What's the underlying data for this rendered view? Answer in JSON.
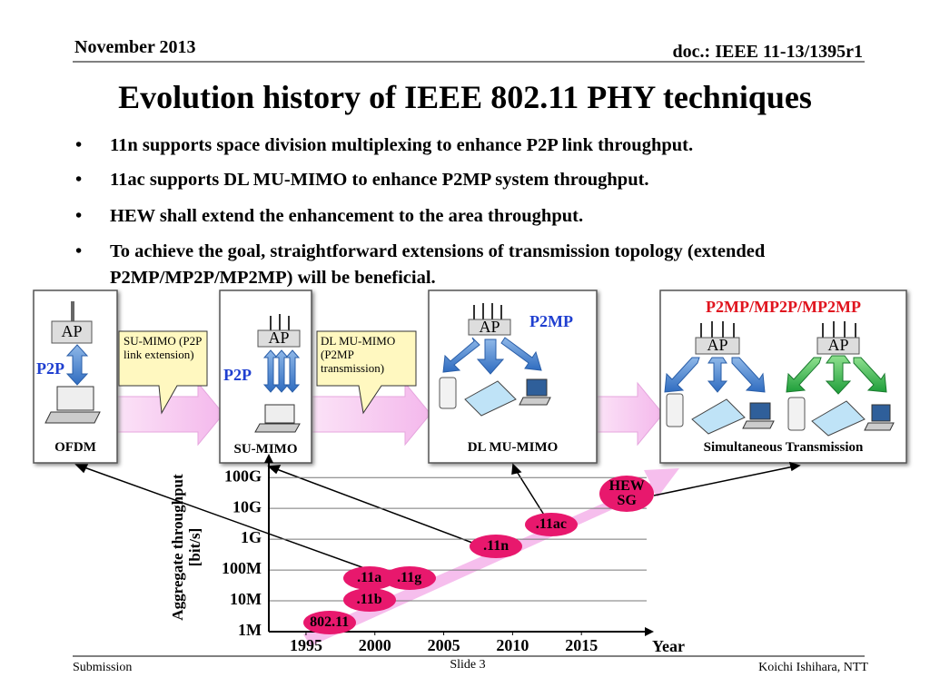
{
  "header": {
    "date": "November 2013",
    "doc": "doc.: IEEE 11-13/1395r1"
  },
  "title": "Evolution history of IEEE 802.11 PHY techniques",
  "bullets": [
    "11n supports space division multiplexing to enhance P2P link throughput.",
    "11ac supports DL MU-MIMO to enhance P2MP system throughput.",
    "HEW shall extend the enhancement to the area throughput.",
    "To achieve the goal, straightforward extensions of transmission topology (extended P2MP/MP2P/MP2MP) will be beneficial."
  ],
  "diagram": {
    "panels": [
      {
        "ap": "AP",
        "link": "P2P",
        "caption": "OFDM"
      },
      {
        "ap": "AP",
        "link": "P2P",
        "caption": "SU-MIMO"
      },
      {
        "ap": "AP",
        "link": "P2MP",
        "caption": "DL MU-MIMO"
      },
      {
        "heading": "P2MP/MP2P/MP2MP",
        "aps": [
          "AP",
          "AP"
        ],
        "caption": "Simultaneous Transmission"
      }
    ],
    "callouts": [
      "SU-MIMO (P2P link extension)",
      "DL MU-MIMO (P2MP transmission)"
    ]
  },
  "chart_data": {
    "type": "scatter",
    "y_label": "Aggregate throughput [bit/s]",
    "x_label": "Year",
    "log_y": true,
    "grid": true,
    "color": "#e8186d",
    "point_labels": [
      "802.11",
      ".11b",
      ".11a",
      ".11g",
      ".11n",
      ".11ac",
      "HEW SG"
    ],
    "x": [
      1996.7,
      1999.6,
      1999.6,
      2002.5,
      2008.8,
      2012.8,
      2018.3
    ],
    "values": [
      2000000,
      11000000,
      54000000,
      54000000,
      600000000,
      3000000000,
      30000000000
    ],
    "xlim": [
      1992.3,
      2020
    ],
    "ylim": [
      1000000,
      300000000000
    ],
    "xticks": [
      1995,
      2000,
      2005,
      2010,
      2015
    ],
    "yticks": [
      {
        "value": 1000000,
        "label": "1M"
      },
      {
        "value": 10000000,
        "label": "10M"
      },
      {
        "value": 100000000,
        "label": "100M"
      },
      {
        "value": 1000000000,
        "label": "1G"
      },
      {
        "value": 10000000000,
        "label": "10G"
      },
      {
        "value": 100000000000,
        "label": "100G"
      }
    ]
  },
  "footer": {
    "left": "Submission",
    "center": "Slide 3",
    "right": "Koichi Ishihara, NTT"
  }
}
